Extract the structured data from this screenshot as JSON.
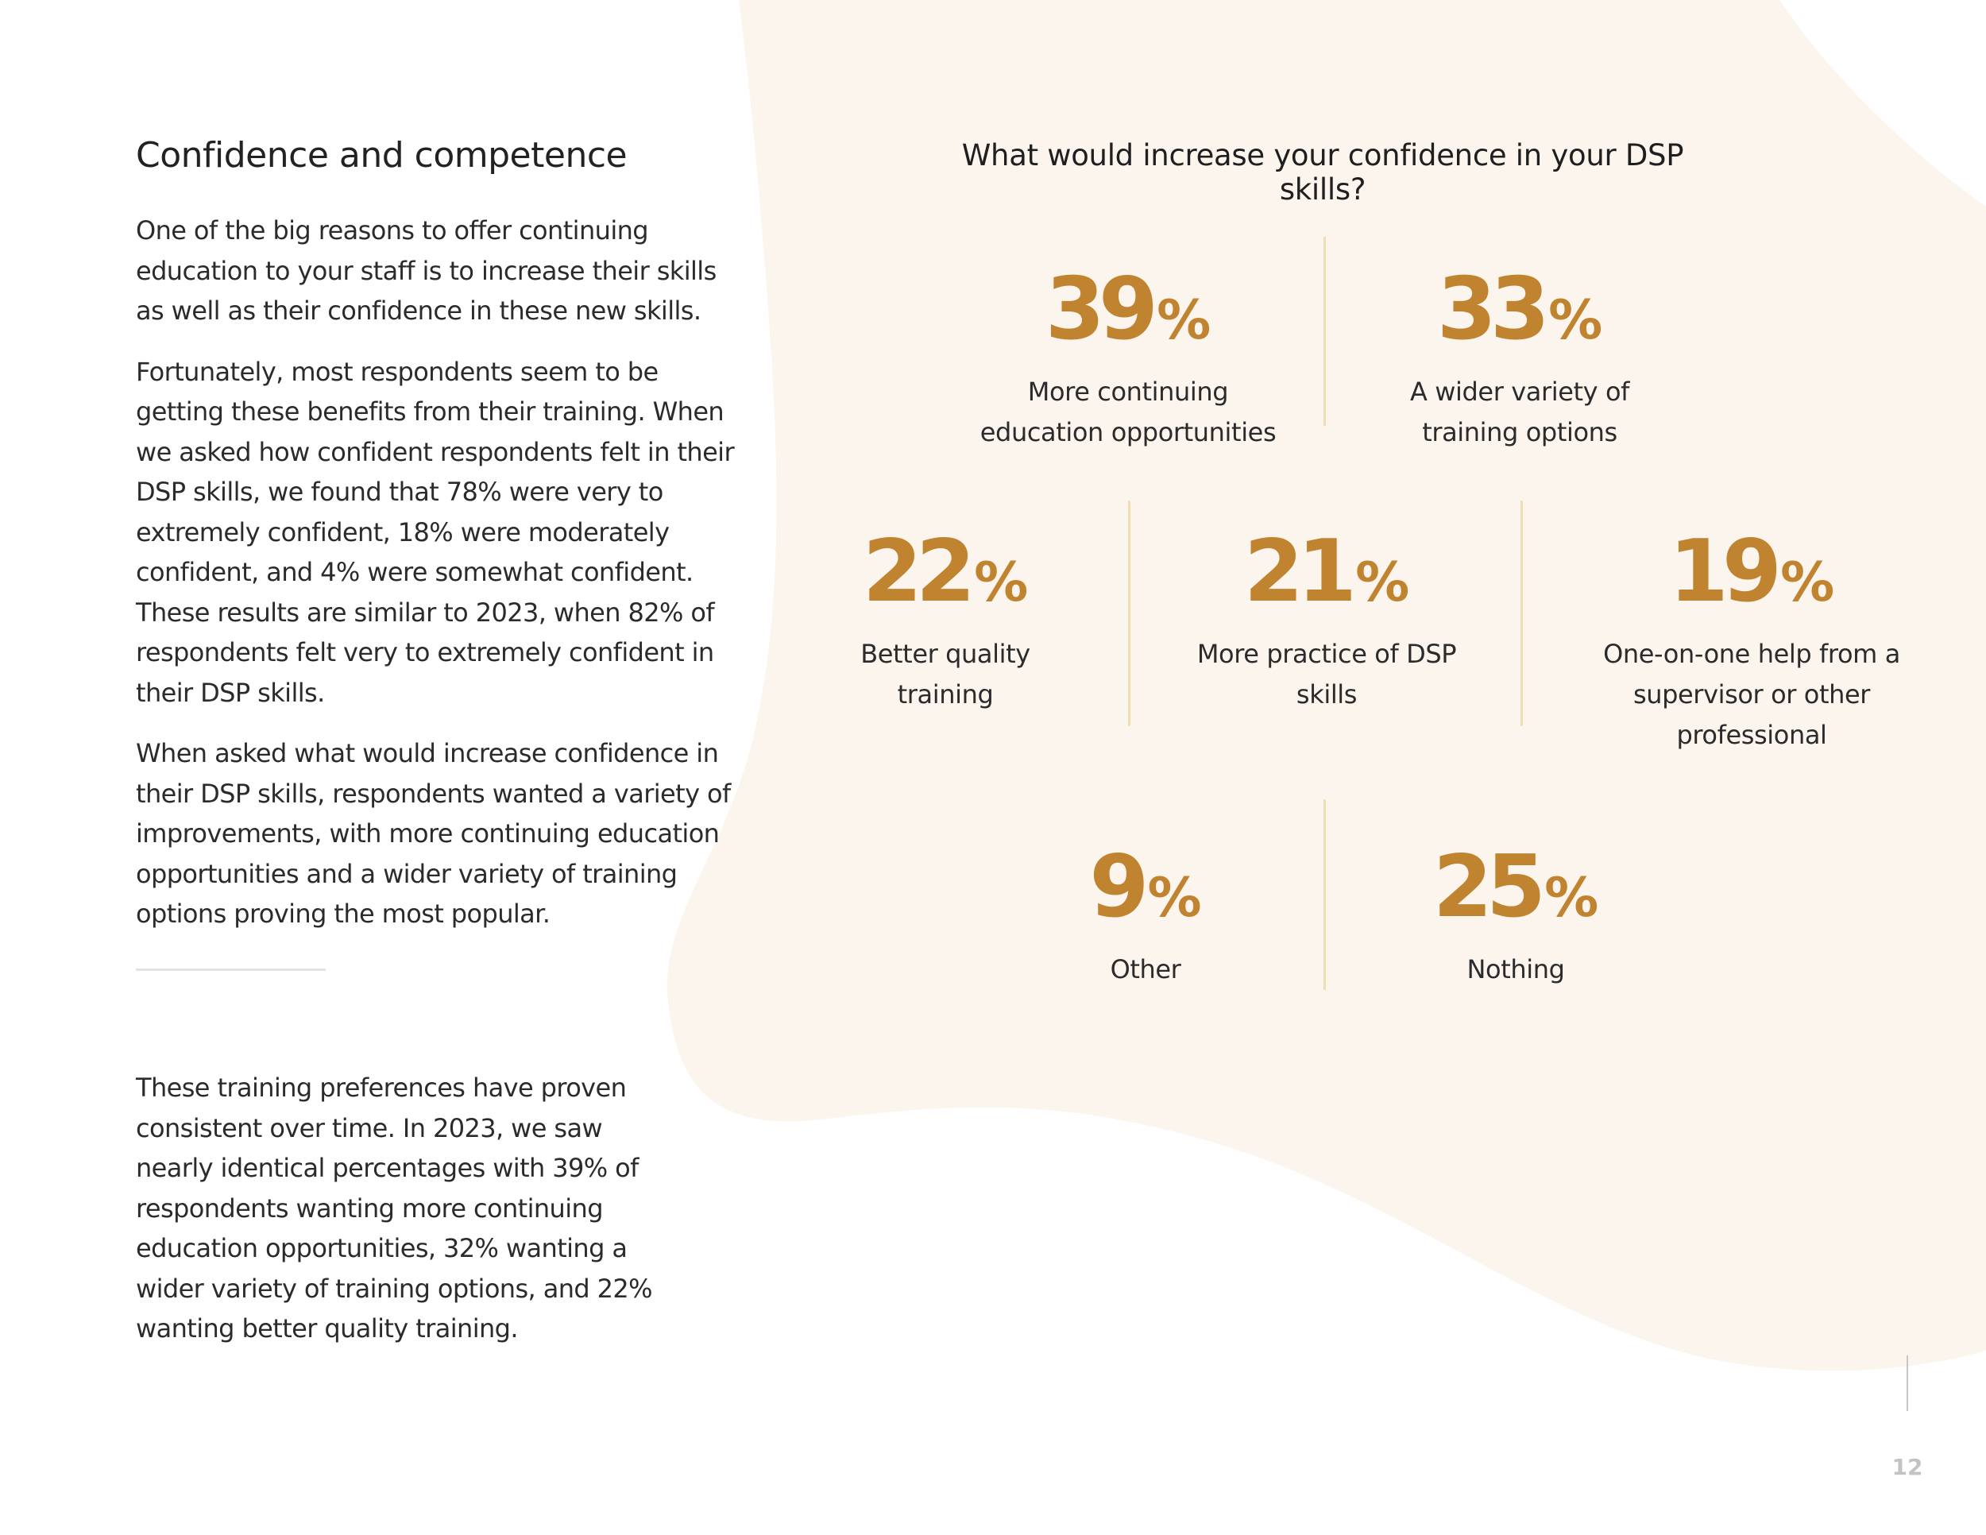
{
  "heading": "Confidence and competence",
  "paragraphs": [
    "One of the big reasons to offer continuing education to your staff is to increase their skills as well as their confidence in these new skills.",
    "Fortunately, most respondents seem to be getting these benefits from their training. When we asked how confident respondents felt in their DSP skills, we found that 78% were very to extremely confident, 18% were moderately confident, and 4% were somewhat confident. These results are similar to 2023, when 82% of respondents felt very to extremely confident in their DSP skills.",
    "When asked what would increase confidence in their DSP skills, respondents wanted a variety of improvements, with more continuing education opportunities and a wider variety of training options proving the most popular."
  ],
  "secondary_paragraph": "These training preferences have proven consistent over time. In 2023, we saw nearly identical percentages with 39% of respondents wanting more continuing education opportunities, 32% wanting a wider variety of training options, and 22% wanting better quality training.",
  "question": "What would increase your confidence in your DSP skills?",
  "stats": [
    {
      "value": "39",
      "unit": "%",
      "label": "More continuing education opportunities"
    },
    {
      "value": "33",
      "unit": "%",
      "label": "A wider variety of training options"
    },
    {
      "value": "22",
      "unit": "%",
      "label": "Better quality training"
    },
    {
      "value": "21",
      "unit": "%",
      "label": "More practice of DSP skills"
    },
    {
      "value": "19",
      "unit": "%",
      "label": "One-on-one help from a supervisor or other professional"
    },
    {
      "value": "9",
      "unit": "%",
      "label": "Other"
    },
    {
      "value": "25",
      "unit": "%",
      "label": "Nothing"
    }
  ],
  "page_number": "12",
  "colors": {
    "accent": "#c08431",
    "background_shape": "#fbf5ee",
    "divider": "#f0dfb0"
  }
}
